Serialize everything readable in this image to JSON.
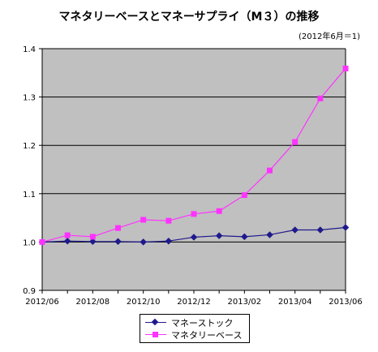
{
  "chart_data": {
    "type": "line",
    "title": "マネタリーベースとマネーサプライ（M３）の推移",
    "subtitle": "(2012年6月＝1)",
    "x": [
      "2012/06",
      "2012/07",
      "2012/08",
      "2012/09",
      "2012/10",
      "2012/11",
      "2012/12",
      "2013/01",
      "2013/02",
      "2013/03",
      "2013/04",
      "2013/05",
      "2013/06"
    ],
    "x_tick_labels": [
      "2012/06",
      "2012/08",
      "2012/10",
      "2012/12",
      "2013/02",
      "2013/04",
      "2013/06"
    ],
    "ylim": [
      0.9,
      1.4
    ],
    "y_ticks": [
      "0.9",
      "1.0",
      "1.1",
      "1.2",
      "1.3",
      "1.4"
    ],
    "grid": "horizontal",
    "legend_position": "bottom",
    "series": [
      {
        "name": "マネーストック",
        "color": "#1f1a8c",
        "marker": "diamond",
        "values": [
          1.0,
          1.002,
          1.001,
          1.001,
          1.0,
          1.002,
          1.01,
          1.013,
          1.011,
          1.015,
          1.025,
          1.025,
          1.03
        ]
      },
      {
        "name": "マネタリーベース",
        "color": "#ff33ff",
        "marker": "square",
        "values": [
          1.0,
          1.014,
          1.011,
          1.029,
          1.046,
          1.044,
          1.058,
          1.064,
          1.097,
          1.148,
          1.207,
          1.297,
          1.359
        ]
      }
    ]
  }
}
